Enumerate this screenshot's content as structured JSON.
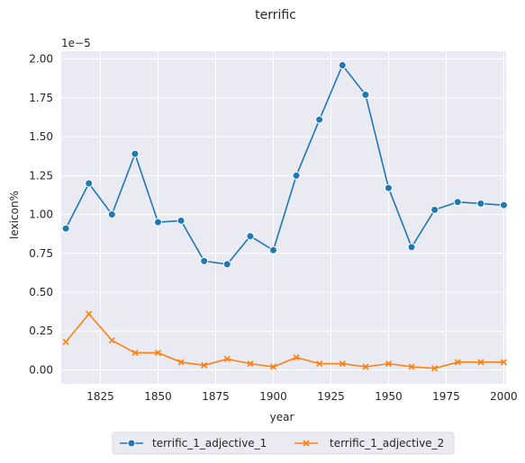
{
  "chart_data": {
    "type": "line",
    "title": "terrific",
    "xlabel": "year",
    "ylabel": "lexicon%",
    "y_scale_note": "1e−5",
    "x": [
      1810,
      1820,
      1830,
      1840,
      1850,
      1860,
      1870,
      1880,
      1890,
      1900,
      1910,
      1920,
      1930,
      1940,
      1950,
      1960,
      1970,
      1980,
      1990,
      2000
    ],
    "series": [
      {
        "name": "terrific_1_adjective_1",
        "color": "#1f77b4",
        "marker": "circle",
        "values": [
          0.91,
          1.2,
          1.0,
          1.39,
          0.95,
          0.96,
          0.7,
          0.68,
          0.86,
          0.77,
          1.25,
          1.61,
          1.96,
          1.77,
          1.17,
          0.79,
          1.03,
          1.08,
          1.07,
          1.06
        ]
      },
      {
        "name": "terrific_1_adjective_2",
        "color": "#ff7f0e",
        "marker": "x",
        "values": [
          0.18,
          0.36,
          0.19,
          0.11,
          0.11,
          0.05,
          0.03,
          0.07,
          0.04,
          0.02,
          0.08,
          0.04,
          0.04,
          0.02,
          0.04,
          0.02,
          0.01,
          0.05,
          0.05,
          0.05
        ]
      }
    ],
    "xlim": [
      1808,
      2001
    ],
    "ylim": [
      -0.09,
      2.05
    ],
    "x_ticks": [
      "1825",
      "1850",
      "1875",
      "1900",
      "1925",
      "1950",
      "1975",
      "2000"
    ],
    "y_ticks": [
      "0.00",
      "0.25",
      "0.50",
      "0.75",
      "1.00",
      "1.25",
      "1.50",
      "1.75",
      "2.00"
    ],
    "grid": true,
    "background": "#eaeaf2",
    "legend_position": "bottom-center"
  }
}
